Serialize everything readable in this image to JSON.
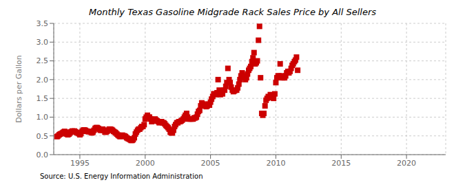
{
  "chart_data": {
    "type": "scatter",
    "title": "Monthly Texas Gasoline Midgrade Rack Sales Price by All Sellers",
    "ylabel": "Dollars per Gallon",
    "source": "Source: U.S. Energy Information Administration",
    "color": "#cc0000",
    "marker": "square",
    "grid": true,
    "xlim": [
      1993.0,
      2023.0
    ],
    "ylim": [
      0.0,
      3.5
    ],
    "xticks": [
      1995,
      2000,
      2005,
      2010,
      2015,
      2020
    ],
    "yticks": [
      {
        "value": 0.0,
        "label": "0.0"
      },
      0.5,
      {
        "value": 1.0,
        "label": "1.0"
      },
      1.5,
      {
        "value": 2.0,
        "label": "2.0"
      },
      2.5,
      {
        "value": 3.0,
        "label": "3.0"
      },
      3.5
    ],
    "x": [
      1993.25,
      1993.33,
      1993.42,
      1993.5,
      1993.58,
      1993.67,
      1993.75,
      1993.83,
      1993.92,
      1994.0,
      1994.08,
      1994.17,
      1994.25,
      1994.33,
      1994.42,
      1994.5,
      1994.58,
      1994.67,
      1994.75,
      1994.83,
      1994.92,
      1995.0,
      1995.08,
      1995.17,
      1995.25,
      1995.33,
      1995.42,
      1995.5,
      1995.58,
      1995.67,
      1995.75,
      1995.83,
      1995.92,
      1996.0,
      1996.08,
      1996.17,
      1996.25,
      1996.33,
      1996.42,
      1996.5,
      1996.58,
      1996.67,
      1996.75,
      1996.83,
      1996.92,
      1997.0,
      1997.08,
      1997.17,
      1997.25,
      1997.33,
      1997.42,
      1997.5,
      1997.58,
      1997.67,
      1997.75,
      1997.83,
      1997.92,
      1998.0,
      1998.08,
      1998.17,
      1998.25,
      1998.33,
      1998.42,
      1998.5,
      1998.58,
      1998.67,
      1998.75,
      1998.83,
      1998.92,
      1999.0,
      1999.08,
      1999.17,
      1999.25,
      1999.33,
      1999.42,
      1999.5,
      1999.58,
      1999.67,
      1999.75,
      1999.83,
      1999.92,
      2000.0,
      2000.08,
      2000.17,
      2000.25,
      2000.33,
      2000.42,
      2000.5,
      2000.58,
      2000.67,
      2000.75,
      2000.83,
      2000.92,
      2001.0,
      2001.08,
      2001.17,
      2001.25,
      2001.33,
      2001.42,
      2001.5,
      2001.58,
      2001.67,
      2001.75,
      2001.83,
      2001.92,
      2002.0,
      2002.08,
      2002.17,
      2002.25,
      2002.33,
      2002.42,
      2002.5,
      2002.58,
      2002.67,
      2002.75,
      2002.83,
      2002.92,
      2003.0,
      2003.08,
      2003.17,
      2003.25,
      2003.33,
      2003.42,
      2003.5,
      2003.58,
      2003.67,
      2003.75,
      2003.83,
      2003.92,
      2004.0,
      2004.08,
      2004.17,
      2004.25,
      2004.33,
      2004.42,
      2004.5,
      2004.58,
      2004.67,
      2004.75,
      2004.83,
      2004.92,
      2005.0,
      2005.08,
      2005.17,
      2005.25,
      2005.33,
      2005.42,
      2005.5,
      2005.58,
      2005.67,
      2005.75,
      2005.83,
      2005.92,
      2006.0,
      2006.08,
      2006.17,
      2006.25,
      2006.33,
      2006.42,
      2006.5,
      2006.58,
      2006.67,
      2006.75,
      2006.83,
      2006.92,
      2007.0,
      2007.08,
      2007.17,
      2007.25,
      2007.33,
      2007.42,
      2007.5,
      2007.58,
      2007.67,
      2007.75,
      2007.83,
      2007.92,
      2008.0,
      2008.08,
      2008.17,
      2008.25,
      2008.33,
      2008.42,
      2008.5,
      2008.58,
      2008.67,
      2008.75,
      2008.83,
      2008.92,
      2009.0,
      2009.08,
      2009.17,
      2009.25,
      2009.33,
      2009.42,
      2009.5,
      2009.58,
      2009.67,
      2009.75,
      2009.83,
      2009.92,
      2010.0,
      2010.08,
      2010.17,
      2010.25,
      2010.33,
      2010.42,
      2010.5,
      2010.58,
      2010.67,
      2010.75,
      2010.83,
      2010.92,
      2011.0,
      2011.08,
      2011.17,
      2011.25,
      2011.33,
      2011.42,
      2011.5,
      2011.58,
      2011.67
    ],
    "values": [
      0.48,
      0.5,
      0.53,
      0.55,
      0.56,
      0.58,
      0.6,
      0.62,
      0.6,
      0.55,
      0.53,
      0.55,
      0.58,
      0.61,
      0.63,
      0.62,
      0.63,
      0.61,
      0.59,
      0.58,
      0.56,
      0.53,
      0.56,
      0.62,
      0.65,
      0.66,
      0.65,
      0.63,
      0.62,
      0.61,
      0.62,
      0.6,
      0.58,
      0.6,
      0.65,
      0.7,
      0.72,
      0.72,
      0.7,
      0.67,
      0.65,
      0.65,
      0.68,
      0.65,
      0.6,
      0.6,
      0.62,
      0.65,
      0.68,
      0.68,
      0.67,
      0.65,
      0.62,
      0.6,
      0.58,
      0.55,
      0.52,
      0.5,
      0.48,
      0.5,
      0.52,
      0.5,
      0.5,
      0.48,
      0.45,
      0.43,
      0.42,
      0.4,
      0.38,
      0.38,
      0.4,
      0.45,
      0.55,
      0.6,
      0.65,
      0.68,
      0.68,
      0.72,
      0.75,
      0.75,
      0.8,
      0.95,
      1.0,
      1.05,
      1.0,
      1.0,
      0.95,
      0.88,
      0.9,
      0.92,
      0.95,
      0.92,
      0.9,
      0.88,
      0.85,
      0.88,
      0.88,
      0.85,
      0.85,
      0.82,
      0.78,
      0.75,
      0.72,
      0.68,
      0.6,
      0.58,
      0.58,
      0.65,
      0.75,
      0.8,
      0.85,
      0.85,
      0.88,
      0.88,
      0.9,
      0.92,
      0.95,
      1.0,
      1.05,
      1.1,
      1.0,
      0.95,
      0.95,
      0.95,
      0.95,
      0.95,
      0.98,
      0.98,
      1.0,
      1.08,
      1.15,
      1.18,
      1.3,
      1.38,
      1.35,
      1.32,
      1.3,
      1.28,
      1.3,
      1.35,
      1.32,
      1.4,
      1.48,
      1.55,
      1.62,
      1.62,
      1.6,
      1.65,
      2.0,
      1.72,
      1.6,
      1.65,
      1.62,
      1.72,
      1.72,
      1.82,
      1.92,
      2.3,
      2.0,
      1.92,
      1.8,
      1.72,
      1.68,
      1.7,
      1.72,
      1.72,
      1.78,
      1.88,
      2.0,
      2.1,
      2.18,
      2.1,
      2.05,
      2.0,
      2.05,
      2.15,
      2.25,
      2.3,
      2.35,
      2.48,
      2.58,
      2.72,
      2.42,
      2.45,
      2.5,
      3.05,
      3.42,
      2.05,
      1.1,
      1.05,
      1.1,
      1.3,
      1.45,
      1.5,
      1.55,
      1.52,
      1.6,
      1.58,
      1.52,
      1.5,
      1.62,
      1.92,
      2.05,
      2.1,
      2.1,
      2.42,
      2.1,
      2.05,
      2.05,
      2.05,
      2.1,
      2.18,
      2.22,
      2.18,
      2.22,
      2.3,
      2.38,
      2.42,
      2.48,
      2.52,
      2.6,
      2.25
    ]
  }
}
